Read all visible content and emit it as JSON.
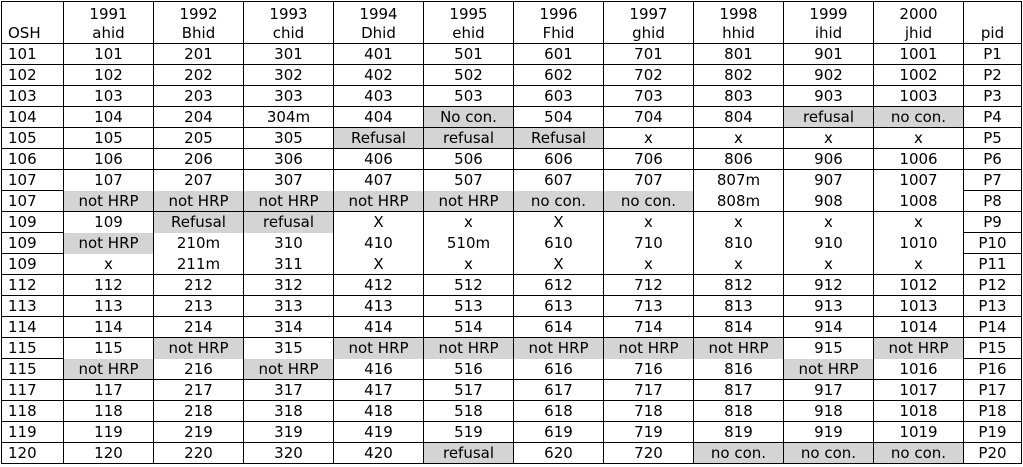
{
  "columns": {
    "osh": "OSH",
    "years": [
      {
        "year": "1991",
        "id": "ahid"
      },
      {
        "year": "1992",
        "id": "Bhid"
      },
      {
        "year": "1993",
        "id": "chid"
      },
      {
        "year": "1994",
        "id": "Dhid"
      },
      {
        "year": "1995",
        "id": "ehid"
      },
      {
        "year": "1996",
        "id": "Fhid"
      },
      {
        "year": "1997",
        "id": "ghid"
      },
      {
        "year": "1998",
        "id": "hhid"
      },
      {
        "year": "1999",
        "id": "ihid"
      },
      {
        "year": "2000",
        "id": "jhid"
      }
    ],
    "pid": "pid"
  },
  "highlight_color": "#d4d4d4",
  "rows": [
    {
      "osh": "101",
      "cells": [
        "101",
        "201",
        "301",
        "401",
        "501",
        "601",
        "701",
        "801",
        "901",
        "1001"
      ],
      "pid": "P1",
      "hl": []
    },
    {
      "osh": "102",
      "cells": [
        "102",
        "202",
        "302",
        "402",
        "502",
        "602",
        "702",
        "802",
        "902",
        "1002"
      ],
      "pid": "P2",
      "hl": []
    },
    {
      "osh": "103",
      "cells": [
        "103",
        "203",
        "303",
        "403",
        "503",
        "603",
        "703",
        "803",
        "903",
        "1003"
      ],
      "pid": "P3",
      "hl": []
    },
    {
      "osh": "104",
      "cells": [
        "104",
        "204",
        "304m",
        "404",
        "No con.",
        "504",
        "704",
        "804",
        "refusal",
        "no con."
      ],
      "pid": "P4",
      "hl": [
        4,
        8,
        9
      ]
    },
    {
      "osh": "105",
      "cells": [
        "105",
        "205",
        "305",
        "Refusal",
        "refusal",
        "Refusal",
        "x",
        "x",
        "x",
        "x"
      ],
      "pid": "P5",
      "hl": [
        3,
        4,
        5
      ]
    },
    {
      "osh": "106",
      "cells": [
        "106",
        "206",
        "306",
        "406",
        "506",
        "606",
        "706",
        "806",
        "906",
        "1006"
      ],
      "pid": "P6",
      "hl": []
    },
    {
      "osh": "107",
      "cells": [
        "107",
        "207",
        "307",
        "407",
        "507",
        "607",
        "707",
        "807m",
        "907",
        "1007"
      ],
      "pid": "P7",
      "hl": []
    },
    {
      "osh": "107",
      "cells": [
        "not HRP",
        "not HRP",
        "not HRP",
        "not HRP",
        "not HRP",
        "no con.",
        "no con.",
        "808m",
        "908",
        "1008"
      ],
      "pid": "P8",
      "hl": [
        0,
        1,
        2,
        3,
        4,
        5,
        6
      ]
    },
    {
      "osh": "109",
      "cells": [
        "109",
        "Refusal",
        "refusal",
        "X",
        "x",
        "X",
        "x",
        "x",
        "x",
        "x"
      ],
      "pid": "P9",
      "hl": [
        1,
        2
      ]
    },
    {
      "osh": "109",
      "cells": [
        "not HRP",
        "210m",
        "310",
        "410",
        "510m",
        "610",
        "710",
        "810",
        "910",
        "1010"
      ],
      "pid": "P10",
      "hl": [
        0
      ]
    },
    {
      "osh": "109",
      "cells": [
        "x",
        "211m",
        "311",
        "X",
        "x",
        "X",
        "x",
        "x",
        "x",
        "x"
      ],
      "pid": "P11",
      "hl": []
    },
    {
      "osh": "112",
      "cells": [
        "112",
        "212",
        "312",
        "412",
        "512",
        "612",
        "712",
        "812",
        "912",
        "1012"
      ],
      "pid": "P12",
      "hl": []
    },
    {
      "osh": "113",
      "cells": [
        "113",
        "213",
        "313",
        "413",
        "513",
        "613",
        "713",
        "813",
        "913",
        "1013"
      ],
      "pid": "P13",
      "hl": []
    },
    {
      "osh": "114",
      "cells": [
        "114",
        "214",
        "314",
        "414",
        "514",
        "614",
        "714",
        "814",
        "914",
        "1014"
      ],
      "pid": "P14",
      "hl": []
    },
    {
      "osh": "115",
      "cells": [
        "115",
        "not HRP",
        "315",
        "not HRP",
        "not HRP",
        "not HRP",
        "not HRP",
        "not HRP",
        "915",
        "not HRP"
      ],
      "pid": "P15",
      "hl": [
        1,
        3,
        4,
        5,
        6,
        7,
        9
      ]
    },
    {
      "osh": "115",
      "cells": [
        "not HRP",
        "216",
        "not HRP",
        "416",
        "516",
        "616",
        "716",
        "816",
        "not HRP",
        "1016"
      ],
      "pid": "P16",
      "hl": [
        0,
        2,
        8
      ]
    },
    {
      "osh": "117",
      "cells": [
        "117",
        "217",
        "317",
        "417",
        "517",
        "617",
        "717",
        "817",
        "917",
        "1017"
      ],
      "pid": "P17",
      "hl": []
    },
    {
      "osh": "118",
      "cells": [
        "118",
        "218",
        "318",
        "418",
        "518",
        "618",
        "718",
        "818",
        "918",
        "1018"
      ],
      "pid": "P18",
      "hl": []
    },
    {
      "osh": "119",
      "cells": [
        "119",
        "219",
        "319",
        "419",
        "519",
        "619",
        "719",
        "819",
        "919",
        "1019"
      ],
      "pid": "P19",
      "hl": []
    },
    {
      "osh": "120",
      "cells": [
        "120",
        "220",
        "320",
        "420",
        "refusal",
        "620",
        "720",
        "no con.",
        "no con.",
        "no con."
      ],
      "pid": "P20",
      "hl": [
        4,
        7,
        8,
        9
      ]
    }
  ]
}
